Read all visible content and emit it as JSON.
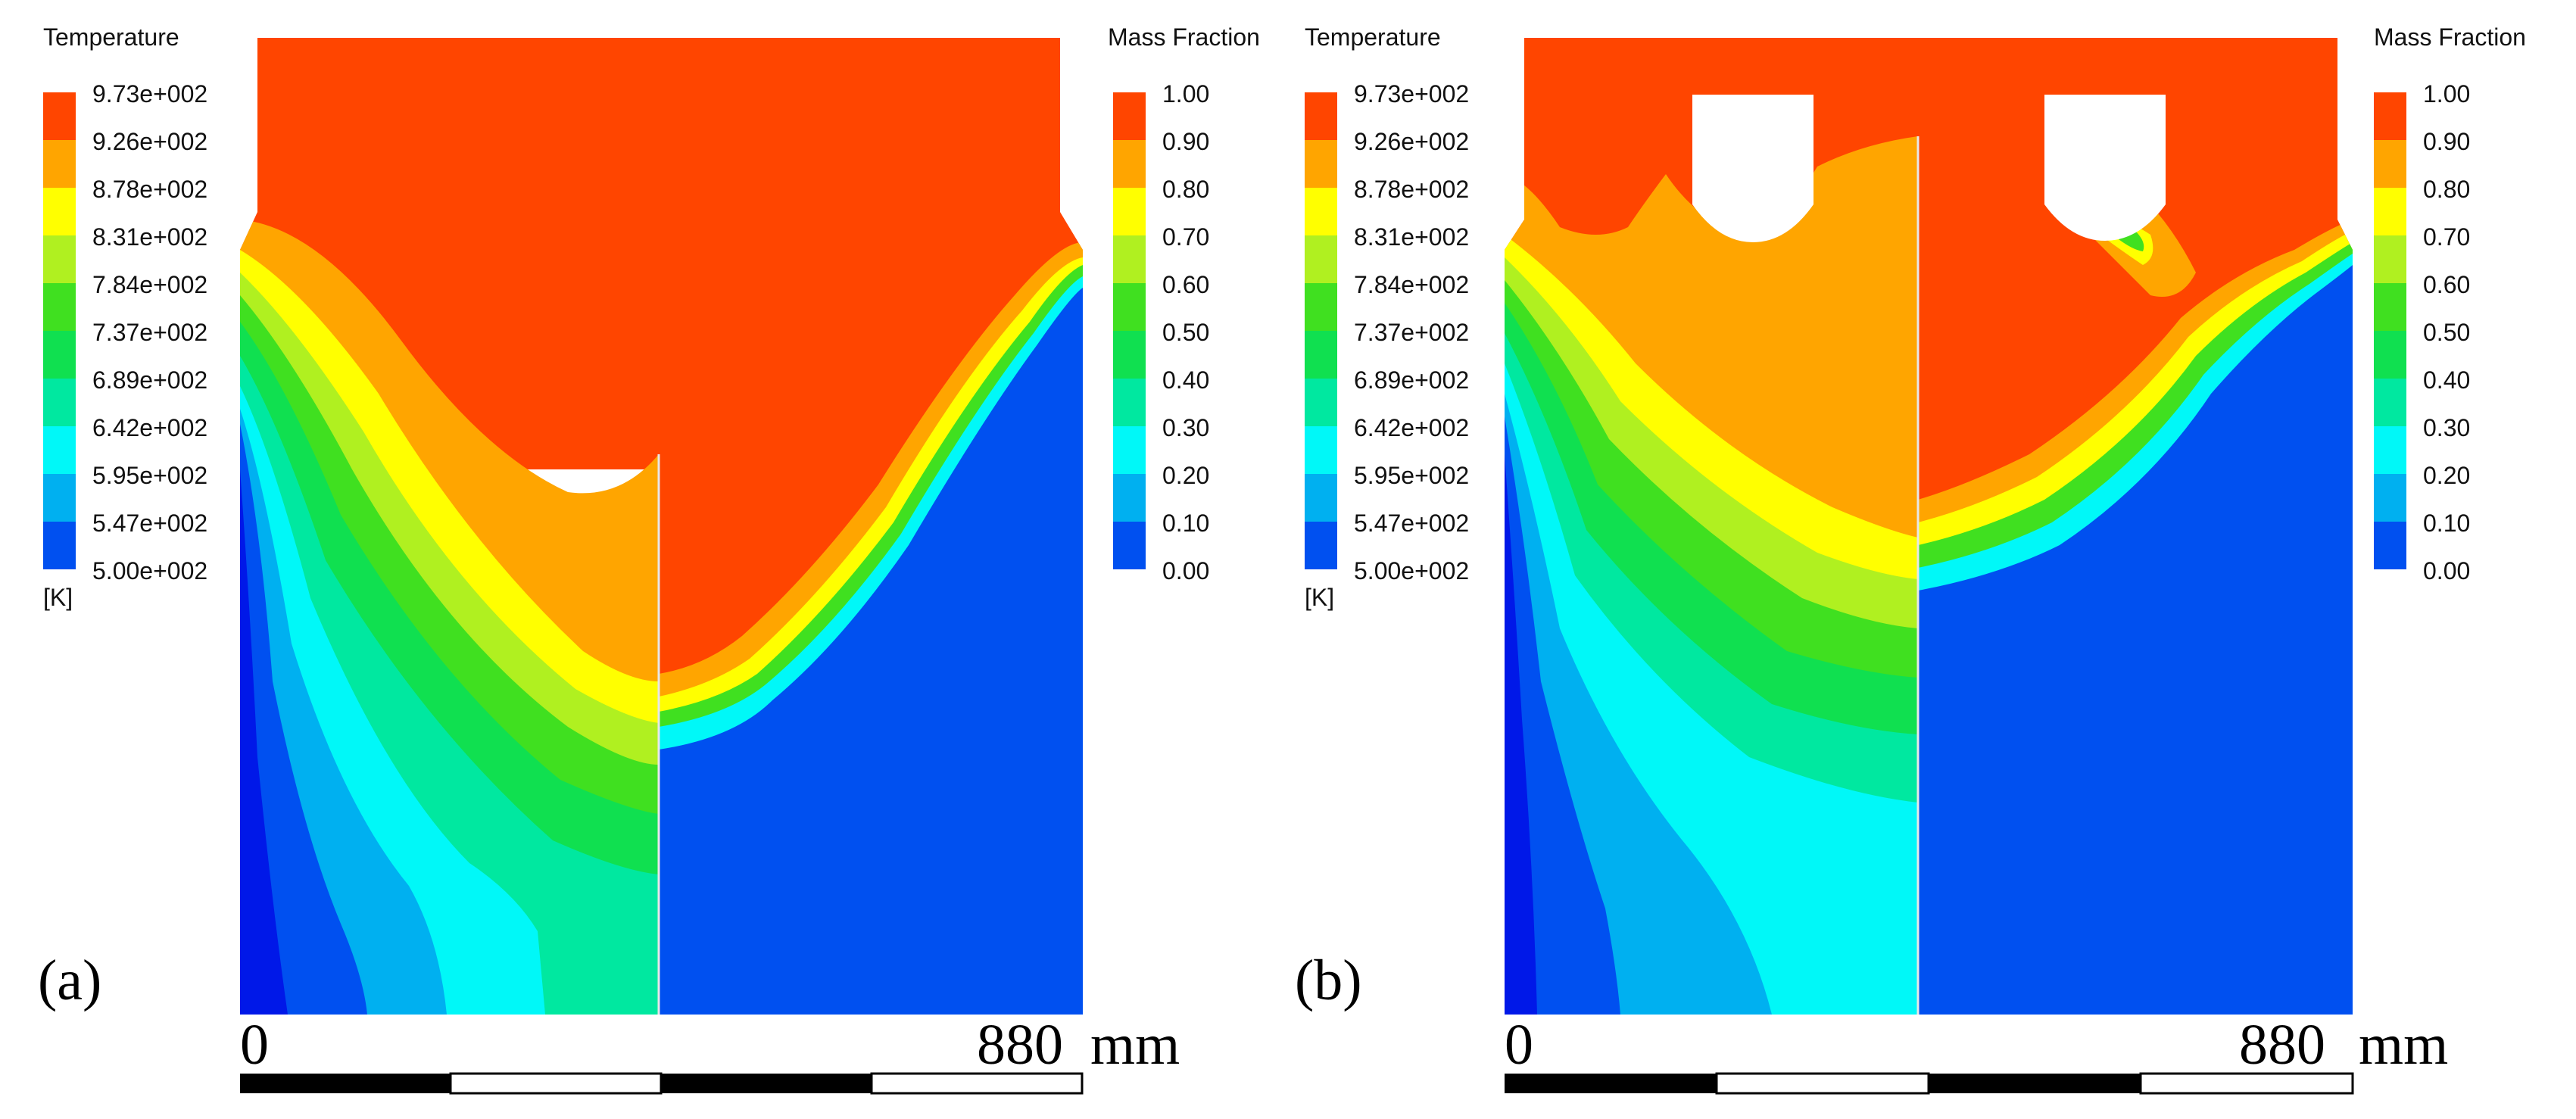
{
  "panels": [
    {
      "label": "(a)",
      "temperature_legend": {
        "title": "Temperature",
        "unit": "[K]",
        "ticks": [
          "9.73e+002",
          "9.26e+002",
          "8.78e+002",
          "8.31e+002",
          "7.84e+002",
          "7.37e+002",
          "6.89e+002",
          "6.42e+002",
          "5.95e+002",
          "5.47e+002",
          "5.00e+002"
        ]
      },
      "mass_fraction_legend": {
        "title": "Mass Fraction",
        "ticks": [
          "1.00",
          "0.90",
          "0.80",
          "0.70",
          "0.60",
          "0.50",
          "0.40",
          "0.30",
          "0.20",
          "0.10",
          "0.00"
        ]
      },
      "scale": {
        "start": "0",
        "end": "880",
        "unit": "mm"
      }
    },
    {
      "label": "(b)",
      "temperature_legend": {
        "title": "Temperature",
        "unit": "[K]",
        "ticks": [
          "9.73e+002",
          "9.26e+002",
          "8.78e+002",
          "8.31e+002",
          "7.84e+002",
          "7.37e+002",
          "6.89e+002",
          "6.42e+002",
          "5.95e+002",
          "5.47e+002",
          "5.00e+002"
        ]
      },
      "mass_fraction_legend": {
        "title": "Mass Fraction",
        "ticks": [
          "1.00",
          "0.90",
          "0.80",
          "0.70",
          "0.60",
          "0.50",
          "0.40",
          "0.30",
          "0.20",
          "0.10",
          "0.00"
        ]
      },
      "scale": {
        "start": "0",
        "end": "880",
        "unit": "mm"
      }
    }
  ],
  "colors": {
    "band_1": "#ff4500",
    "band_2": "#ffa500",
    "band_3": "#ffff00",
    "band_4": "#b0f020",
    "band_5": "#40e020",
    "band_6": "#10e050",
    "band_7": "#00e8a0",
    "band_8": "#00f8f8",
    "band_9": "#00b0f0",
    "band_10": "#0050f0",
    "scale_dark": "#000000",
    "scale_light": "#ffffff"
  }
}
